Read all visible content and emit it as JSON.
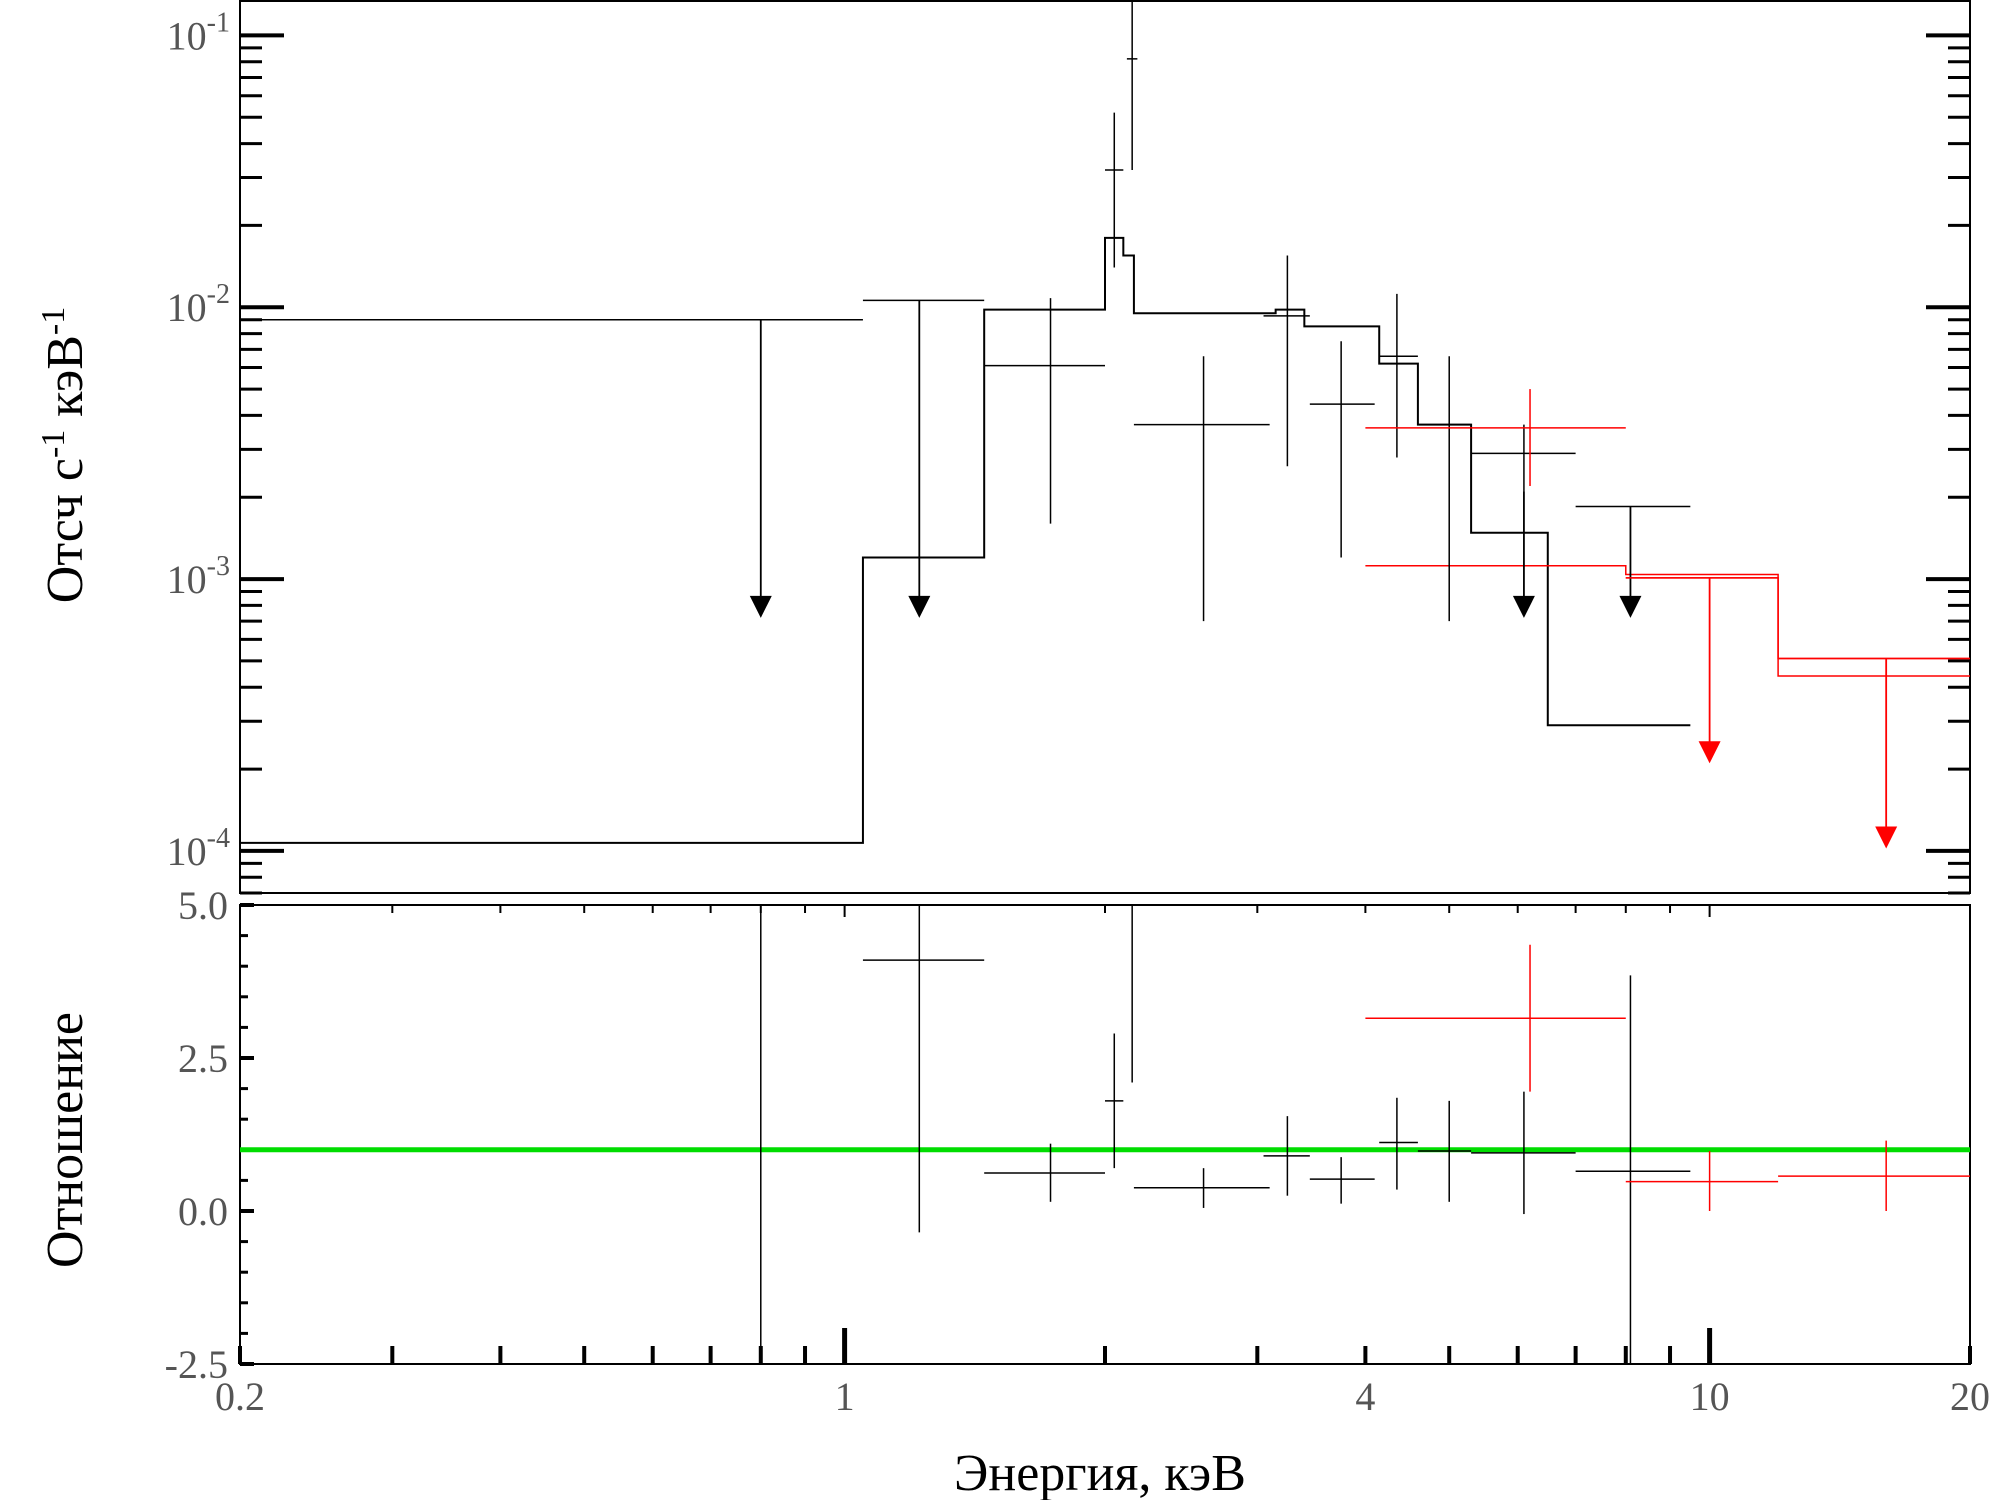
{
  "chart_data": {
    "type": "scatter",
    "x_scale": "log",
    "xlim": [
      0.2,
      20
    ],
    "xlabel": "Энергия, кэВ",
    "x_ticks": [
      {
        "value": 0.2,
        "label": "0.2"
      },
      {
        "value": 1,
        "label": "1"
      },
      {
        "value": 4,
        "label": "4"
      },
      {
        "value": 10,
        "label": "10"
      },
      {
        "value": 20,
        "label": "20"
      }
    ],
    "colors": {
      "black": "#000000",
      "red": "#ff0000",
      "green": "#00dd00"
    },
    "top_panel": {
      "ylabel": "Отсч с-1 кэВ-1",
      "y_scale": "log",
      "ylim": [
        7e-05,
        0.135
      ],
      "y_ticks": [
        {
          "value": 0.1,
          "mant": "10",
          "exp": "-1"
        },
        {
          "value": 0.01,
          "mant": "10",
          "exp": "-2"
        },
        {
          "value": 0.001,
          "mant": "10",
          "exp": "-3"
        },
        {
          "value": 0.0001,
          "mant": "10",
          "exp": "-4"
        }
      ],
      "black_model": [
        [
          0.2,
          1.05,
          0.000107
        ],
        [
          1.05,
          1.45,
          0.0012
        ],
        [
          1.45,
          2.0,
          0.0098
        ],
        [
          2.0,
          2.1,
          0.018
        ],
        [
          2.1,
          2.16,
          0.0155
        ],
        [
          2.16,
          3.15,
          0.0095
        ],
        [
          3.15,
          3.4,
          0.0098
        ],
        [
          3.4,
          4.15,
          0.0085
        ],
        [
          4.15,
          4.6,
          0.0062
        ],
        [
          4.6,
          5.3,
          0.0037
        ],
        [
          5.3,
          6.5,
          0.00148
        ],
        [
          6.5,
          9.5,
          0.00029
        ]
      ],
      "red_model": [
        [
          4.0,
          8.0,
          0.00112
        ],
        [
          8.0,
          12.0,
          0.00104
        ],
        [
          12.0,
          20.0,
          0.00051
        ]
      ],
      "red_model2": [
        [
          8.0,
          12.0,
          0.00101
        ],
        [
          12.0,
          20.0,
          0.00044
        ]
      ],
      "black_points": [
        {
          "x": 1.73,
          "xlo": 1.45,
          "xhi": 2.0,
          "y": 0.0061,
          "ylo": 0.0016,
          "yhi": 0.0108
        },
        {
          "x": 2.05,
          "xlo": 2.0,
          "xhi": 2.1,
          "y": 0.032,
          "ylo": 0.014,
          "yhi": 0.052
        },
        {
          "x": 2.15,
          "xlo": 2.12,
          "xhi": 2.18,
          "y": 0.082,
          "ylo": 0.032,
          "yhi": 0.135
        },
        {
          "x": 2.6,
          "xlo": 2.16,
          "xhi": 3.1,
          "y": 0.0037,
          "ylo": 0.0007,
          "yhi": 0.0066
        },
        {
          "x": 3.25,
          "xlo": 3.05,
          "xhi": 3.45,
          "y": 0.0093,
          "ylo": 0.0026,
          "yhi": 0.0155
        },
        {
          "x": 3.75,
          "xlo": 3.45,
          "xhi": 4.1,
          "y": 0.0044,
          "ylo": 0.0012,
          "yhi": 0.0075
        },
        {
          "x": 4.35,
          "xlo": 4.15,
          "xhi": 4.6,
          "y": 0.0066,
          "ylo": 0.0028,
          "yhi": 0.0112
        },
        {
          "x": 5.0,
          "xlo": 4.6,
          "xhi": 5.3,
          "y": 0.0037,
          "ylo": 0.0007,
          "yhi": 0.0066
        },
        {
          "x": 6.1,
          "xlo": 5.3,
          "xhi": 7.0,
          "y": 0.0029,
          "ylo": 0.0021,
          "yhi": 0.0037
        }
      ],
      "black_limits": [
        {
          "x": 0.8,
          "xlo": 0.2,
          "xhi": 1.05,
          "y": 0.009,
          "arrow": 0.00072
        },
        {
          "x": 1.22,
          "xlo": 1.05,
          "xhi": 1.45,
          "y": 0.0106,
          "arrow": 0.00072
        },
        {
          "x": 6.1,
          "xlo": 6.1,
          "xhi": 6.1,
          "y": 0.0021,
          "arrow": 0.00072
        },
        {
          "x": 8.1,
          "xlo": 7.0,
          "xhi": 9.5,
          "y": 0.00185,
          "arrow": 0.00072
        }
      ],
      "red_points": [
        {
          "x": 6.2,
          "xlo": 4.0,
          "xhi": 8.0,
          "y": 0.0036,
          "ylo": 0.0022,
          "yhi": 0.005
        }
      ],
      "red_limits": [
        {
          "x": 10.0,
          "xlo": 8.0,
          "xhi": 12.0,
          "y": 0.00101,
          "arrow": 0.00021
        },
        {
          "x": 16.0,
          "xlo": 12.0,
          "xhi": 20.0,
          "y": 0.00051,
          "arrow": 0.000102
        }
      ]
    },
    "bottom_panel": {
      "ylabel": "Отношение",
      "ylim": [
        -2.5,
        5.0
      ],
      "y_ticks": [
        {
          "value": 5.0,
          "label": "5.0"
        },
        {
          "value": 2.5,
          "label": "2.5"
        },
        {
          "value": 0.0,
          "label": "0.0"
        },
        {
          "value": -2.5,
          "label": "-2.5"
        }
      ],
      "reference_line": 1.0,
      "black_points": [
        {
          "x": 0.8,
          "xlo": 0.8,
          "xhi": 0.8,
          "y": 1.0,
          "ylo": -2.5,
          "yhi": 5.0
        },
        {
          "x": 1.22,
          "xlo": 1.05,
          "xhi": 1.45,
          "y": 4.1,
          "ylo": -0.35,
          "yhi": 5.0
        },
        {
          "x": 1.73,
          "xlo": 1.45,
          "xhi": 2.0,
          "y": 0.62,
          "ylo": 0.15,
          "yhi": 1.1
        },
        {
          "x": 2.05,
          "xlo": 2.0,
          "xhi": 2.1,
          "y": 1.8,
          "ylo": 0.7,
          "yhi": 2.9
        },
        {
          "x": 2.15,
          "xlo": 2.15,
          "xhi": 2.15,
          "y": 5.0,
          "ylo": 2.1,
          "yhi": 5.0
        },
        {
          "x": 2.6,
          "xlo": 2.16,
          "xhi": 3.1,
          "y": 0.38,
          "ylo": 0.05,
          "yhi": 0.7
        },
        {
          "x": 3.25,
          "xlo": 3.05,
          "xhi": 3.45,
          "y": 0.9,
          "ylo": 0.25,
          "yhi": 1.55
        },
        {
          "x": 3.75,
          "xlo": 3.45,
          "xhi": 4.1,
          "y": 0.52,
          "ylo": 0.12,
          "yhi": 0.88
        },
        {
          "x": 4.35,
          "xlo": 4.15,
          "xhi": 4.6,
          "y": 1.12,
          "ylo": 0.35,
          "yhi": 1.85
        },
        {
          "x": 5.0,
          "xlo": 4.6,
          "xhi": 5.3,
          "y": 0.98,
          "ylo": 0.15,
          "yhi": 1.8
        },
        {
          "x": 6.1,
          "xlo": 5.3,
          "xhi": 7.0,
          "y": 0.95,
          "ylo": -0.05,
          "yhi": 1.95
        },
        {
          "x": 8.1,
          "xlo": 7.0,
          "xhi": 9.5,
          "y": 0.65,
          "ylo": -2.5,
          "yhi": 3.85
        }
      ],
      "red_points": [
        {
          "x": 6.2,
          "xlo": 4.0,
          "xhi": 8.0,
          "y": 3.15,
          "ylo": 1.95,
          "yhi": 4.35
        },
        {
          "x": 10.0,
          "xlo": 8.0,
          "xhi": 12.0,
          "y": 0.48,
          "ylo": 0.0,
          "yhi": 0.98
        },
        {
          "x": 16.0,
          "xlo": 12.0,
          "xhi": 20.0,
          "y": 0.57,
          "ylo": 0.0,
          "yhi": 1.15
        }
      ]
    }
  }
}
